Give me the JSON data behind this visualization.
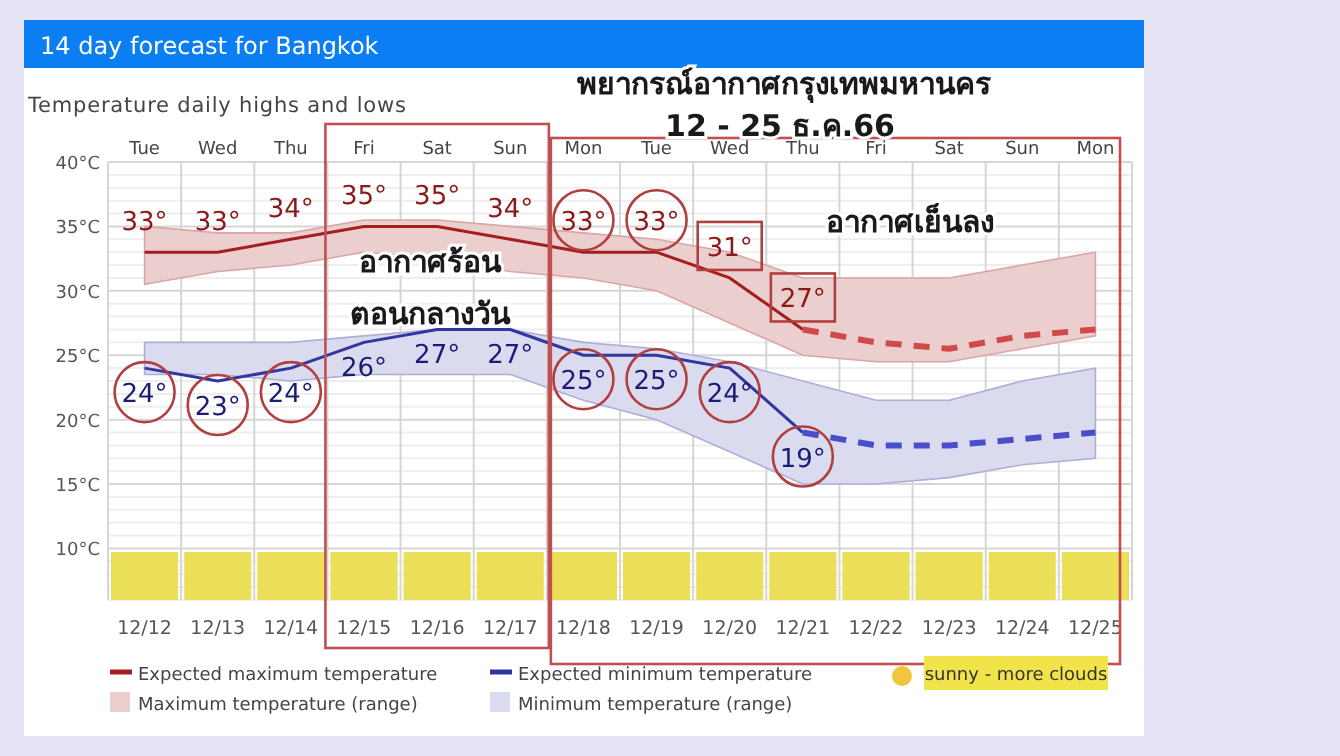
{
  "chart_data": {
    "type": "line",
    "title": "14 day forecast for Bangkok",
    "subtitle": "Temperature daily highs and lows",
    "categories": [
      "12/12",
      "12/13",
      "12/14",
      "12/15",
      "12/16",
      "12/17",
      "12/18",
      "12/19",
      "12/20",
      "12/21",
      "12/22",
      "12/23",
      "12/24",
      "12/25"
    ],
    "series": [
      {
        "name": "Expected maximum temperature",
        "color": "#a31f1f",
        "line_style": "solid",
        "values": [
          33,
          33,
          34,
          35,
          35,
          34,
          33,
          33,
          31,
          27,
          null,
          null,
          null,
          null
        ],
        "value_labels": [
          "33°",
          "33°",
          "34°",
          "35°",
          "35°",
          "34°",
          "33°",
          "33°",
          "31°",
          "27°",
          null,
          null,
          null,
          null
        ],
        "lower": [
          30.5,
          31.5,
          32,
          33,
          32.5,
          31.5,
          31,
          30,
          27.5,
          25,
          24.5,
          24.5,
          25.5,
          26.5
        ],
        "upper": [
          35,
          34.5,
          34.5,
          35.5,
          35.5,
          35,
          34.5,
          34,
          33,
          31,
          31,
          31,
          32,
          33
        ]
      },
      {
        "name": "Expected minimum temperature",
        "color": "#34359e",
        "line_style": "solid",
        "values": [
          24,
          23,
          24,
          26,
          27,
          27,
          25,
          25,
          24,
          19,
          null,
          null,
          null,
          null
        ],
        "value_labels": [
          "24°",
          "23°",
          "24°",
          "26°",
          "27°",
          "27°",
          "25°",
          "25°",
          "24°",
          "19°",
          null,
          null,
          null,
          null
        ],
        "lower": [
          23.5,
          23.5,
          23,
          23.5,
          23.5,
          23.5,
          21.5,
          20,
          17.5,
          15,
          15,
          15.5,
          16.5,
          17
        ],
        "upper": [
          26,
          26,
          26,
          26.5,
          27,
          27,
          26,
          25.5,
          24.5,
          23,
          21.5,
          21.5,
          23,
          24
        ]
      },
      {
        "color": "#d04a4a",
        "line_style": "dashed",
        "values": [
          null,
          null,
          null,
          null,
          null,
          null,
          null,
          null,
          null,
          27,
          26,
          25.5,
          26.5,
          27
        ]
      },
      {
        "color": "#4a4ec8",
        "line_style": "dashed",
        "values": [
          null,
          null,
          null,
          null,
          null,
          null,
          null,
          null,
          null,
          19,
          18,
          18,
          18.5,
          19
        ]
      }
    ],
    "ylim": [
      6,
      40
    ],
    "yticks": [
      {
        "value": 10,
        "label": "10°C"
      },
      {
        "value": 15,
        "label": "15°C"
      },
      {
        "value": 20,
        "label": "20°C"
      },
      {
        "value": 25,
        "label": "25°C"
      },
      {
        "value": 30,
        "label": "30°C"
      },
      {
        "value": 35,
        "label": "35°C"
      },
      {
        "value": 40,
        "label": "40°C"
      }
    ],
    "grid": true,
    "legend": "bottom",
    "annotations": [
      "พยากรณ์อากาศกรุงเทพมหานคร",
      "12 - 25 ธ.ค.66",
      "อากาศร้อน",
      "ตอนกลางวัน",
      "อากาศเย็นลง",
      "Maximum temperature (range)",
      "Minimum temperature (range)",
      "sunny - more clouds",
      "Tue",
      "Wed",
      "Thu",
      "Fri",
      "Sat",
      "Sun",
      "Mon",
      "Tue",
      "Wed",
      "Thu",
      "Fri",
      "Sat",
      "Sun",
      "Mon"
    ]
  }
}
